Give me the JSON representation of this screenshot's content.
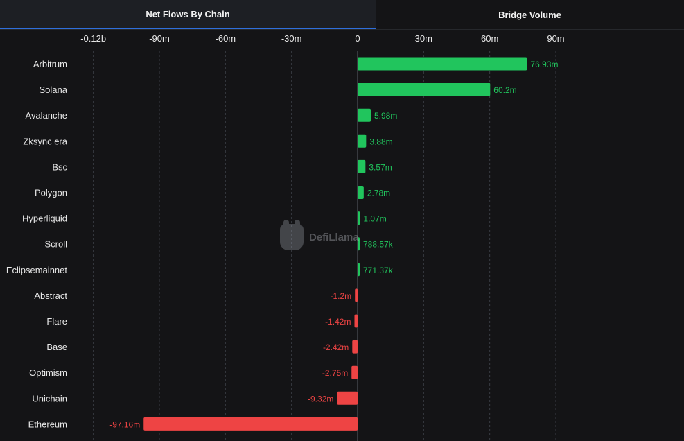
{
  "tabs": [
    {
      "label": "Net Flows By Chain",
      "active": true
    },
    {
      "label": "Bridge Volume",
      "active": false
    }
  ],
  "watermark": "DefiLlama",
  "colors": {
    "positive": "#21c55d",
    "negative": "#ee4444",
    "positive_label": "#21c55d",
    "negative_label": "#ee4444",
    "axis_text": "#e6e6e6",
    "category_text": "#e8e8e8",
    "grid": "#3a3d44",
    "zero_line": "#5a5e66",
    "active_tab_underline": "#2f6fdc"
  },
  "chart_data": {
    "type": "bar",
    "orientation": "horizontal",
    "title": "Net Flows By Chain",
    "xlim": [
      -120000000,
      100000000
    ],
    "ticks": [
      {
        "value": -120000000,
        "label": "-0.12b"
      },
      {
        "value": -90000000,
        "label": "-90m"
      },
      {
        "value": -60000000,
        "label": "-60m"
      },
      {
        "value": -30000000,
        "label": "-30m"
      },
      {
        "value": 0,
        "label": "0"
      },
      {
        "value": 30000000,
        "label": "30m"
      },
      {
        "value": 60000000,
        "label": "60m"
      },
      {
        "value": 90000000,
        "label": "90m"
      }
    ],
    "grid": true,
    "categories": [
      "Arbitrum",
      "Solana",
      "Avalanche",
      "Zksync era",
      "Bsc",
      "Polygon",
      "Hyperliquid",
      "Scroll",
      "Eclipsemainnet",
      "Abstract",
      "Flare",
      "Base",
      "Optimism",
      "Unichain",
      "Ethereum"
    ],
    "values": [
      76930000,
      60200000,
      5980000,
      3880000,
      3570000,
      2780000,
      1070000,
      788570,
      771370,
      -1200000,
      -1420000,
      -2420000,
      -2750000,
      -9320000,
      -97160000
    ],
    "labels": [
      "76.93m",
      "60.2m",
      "5.98m",
      "3.88m",
      "3.57m",
      "2.78m",
      "1.07m",
      "788.57k",
      "771.37k",
      "-1.2m",
      "-1.42m",
      "-2.42m",
      "-2.75m",
      "-9.32m",
      "-97.16m"
    ]
  }
}
